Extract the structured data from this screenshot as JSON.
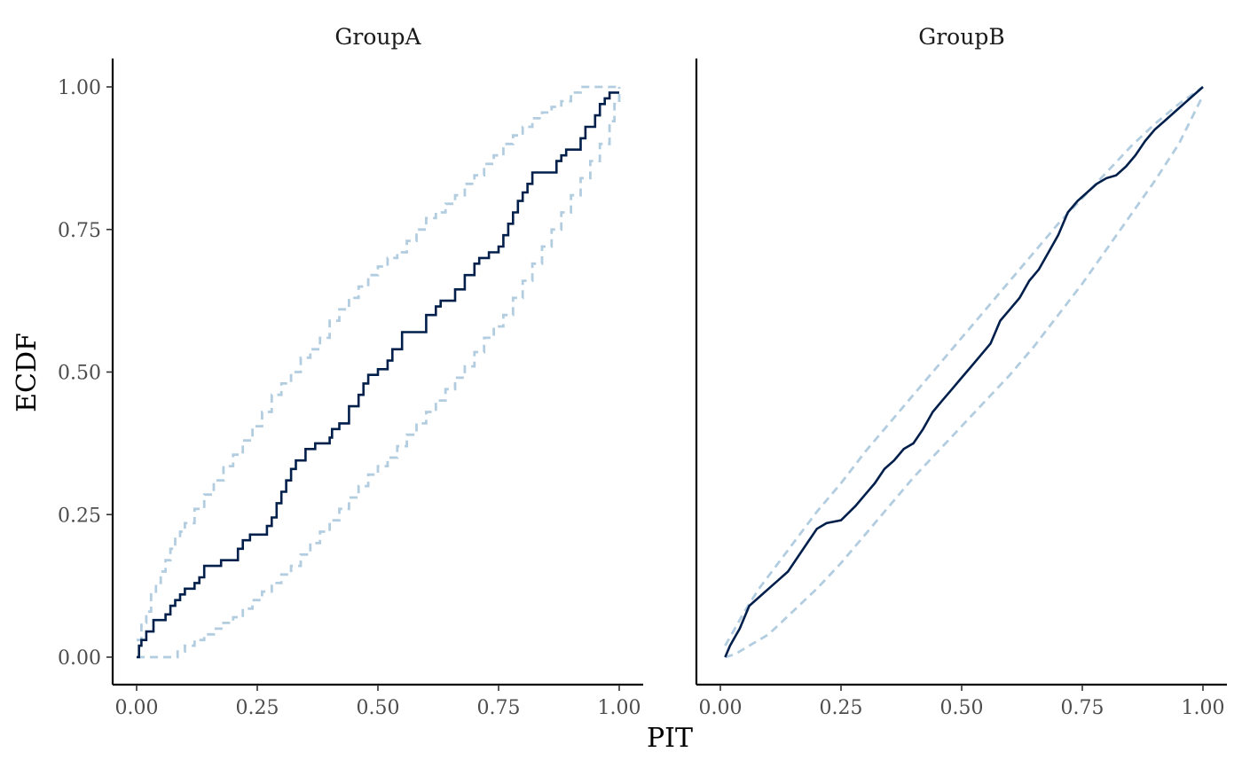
{
  "chart_data": {
    "type": "line",
    "xlabel": "PIT",
    "ylabel": "ECDF",
    "xlim": [
      0,
      1
    ],
    "ylim": [
      0,
      1
    ],
    "x_ticks": [
      "0.00",
      "0.25",
      "0.50",
      "0.75",
      "1.00"
    ],
    "y_ticks": [
      "0.00",
      "0.25",
      "0.50",
      "0.75",
      "1.00"
    ],
    "grid": false,
    "panels": [
      {
        "title": "GroupA",
        "series": [
          {
            "role": "ecdf",
            "color": "#011f4b",
            "step": true,
            "x": [
              0,
              0.005,
              0.01,
              0.02,
              0.035,
              0.06,
              0.07,
              0.08,
              0.09,
              0.1,
              0.12,
              0.13,
              0.14,
              0.175,
              0.21,
              0.22,
              0.235,
              0.27,
              0.28,
              0.29,
              0.3,
              0.31,
              0.32,
              0.33,
              0.35,
              0.37,
              0.4,
              0.405,
              0.42,
              0.44,
              0.46,
              0.47,
              0.48,
              0.5,
              0.52,
              0.53,
              0.55,
              0.6,
              0.62,
              0.63,
              0.66,
              0.68,
              0.7,
              0.71,
              0.73,
              0.75,
              0.76,
              0.77,
              0.78,
              0.79,
              0.8,
              0.81,
              0.82,
              0.835,
              0.87,
              0.88,
              0.89,
              0.92,
              0.93,
              0.95,
              0.96,
              0.97,
              0.98,
              0.99,
              1.0
            ],
            "y": [
              0,
              0.02,
              0.03,
              0.045,
              0.065,
              0.075,
              0.09,
              0.1,
              0.11,
              0.12,
              0.13,
              0.14,
              0.16,
              0.17,
              0.19,
              0.205,
              0.215,
              0.23,
              0.245,
              0.27,
              0.29,
              0.31,
              0.33,
              0.345,
              0.365,
              0.375,
              0.385,
              0.4,
              0.41,
              0.44,
              0.46,
              0.48,
              0.495,
              0.505,
              0.52,
              0.54,
              0.57,
              0.6,
              0.615,
              0.625,
              0.645,
              0.67,
              0.69,
              0.7,
              0.71,
              0.72,
              0.74,
              0.76,
              0.78,
              0.8,
              0.815,
              0.83,
              0.85,
              0.85,
              0.87,
              0.88,
              0.89,
              0.91,
              0.93,
              0.95,
              0.97,
              0.98,
              0.99,
              0.99,
              0.99
            ]
          },
          {
            "role": "upper-band",
            "color": "#b3cde0",
            "step": true,
            "x": [
              0,
              0.01,
              0.02,
              0.03,
              0.04,
              0.05,
              0.06,
              0.07,
              0.08,
              0.09,
              0.1,
              0.12,
              0.14,
              0.16,
              0.18,
              0.2,
              0.22,
              0.24,
              0.26,
              0.28,
              0.3,
              0.32,
              0.34,
              0.36,
              0.38,
              0.4,
              0.42,
              0.44,
              0.46,
              0.48,
              0.5,
              0.52,
              0.54,
              0.56,
              0.58,
              0.6,
              0.62,
              0.64,
              0.66,
              0.68,
              0.7,
              0.72,
              0.74,
              0.76,
              0.78,
              0.8,
              0.82,
              0.84,
              0.86,
              0.88,
              0.9,
              0.92,
              0.94,
              0.96,
              0.98,
              1.0
            ],
            "y": [
              0.03,
              0.06,
              0.08,
              0.11,
              0.13,
              0.15,
              0.17,
              0.19,
              0.21,
              0.22,
              0.235,
              0.26,
              0.285,
              0.31,
              0.335,
              0.355,
              0.38,
              0.405,
              0.43,
              0.46,
              0.48,
              0.5,
              0.525,
              0.54,
              0.56,
              0.59,
              0.61,
              0.63,
              0.65,
              0.67,
              0.685,
              0.7,
              0.71,
              0.73,
              0.75,
              0.77,
              0.78,
              0.795,
              0.81,
              0.83,
              0.845,
              0.865,
              0.88,
              0.9,
              0.915,
              0.93,
              0.945,
              0.955,
              0.965,
              0.975,
              0.99,
              1.0,
              1.0,
              1.0,
              1.0,
              1.0
            ]
          },
          {
            "role": "lower-band",
            "color": "#b3cde0",
            "step": true,
            "x": [
              0,
              0.06,
              0.085,
              0.1,
              0.12,
              0.14,
              0.16,
              0.18,
              0.2,
              0.22,
              0.24,
              0.26,
              0.28,
              0.3,
              0.32,
              0.34,
              0.36,
              0.38,
              0.4,
              0.42,
              0.44,
              0.46,
              0.48,
              0.5,
              0.52,
              0.54,
              0.56,
              0.58,
              0.6,
              0.62,
              0.64,
              0.66,
              0.68,
              0.7,
              0.72,
              0.74,
              0.76,
              0.78,
              0.8,
              0.82,
              0.84,
              0.86,
              0.88,
              0.9,
              0.92,
              0.94,
              0.96,
              0.98,
              0.99,
              1.0
            ],
            "y": [
              0,
              0,
              0.01,
              0.02,
              0.03,
              0.04,
              0.05,
              0.06,
              0.07,
              0.085,
              0.1,
              0.115,
              0.13,
              0.145,
              0.16,
              0.18,
              0.2,
              0.22,
              0.24,
              0.26,
              0.28,
              0.3,
              0.32,
              0.335,
              0.35,
              0.37,
              0.39,
              0.41,
              0.43,
              0.45,
              0.47,
              0.49,
              0.51,
              0.535,
              0.56,
              0.58,
              0.6,
              0.63,
              0.66,
              0.69,
              0.72,
              0.75,
              0.78,
              0.81,
              0.84,
              0.87,
              0.9,
              0.94,
              0.97,
              1.0
            ]
          }
        ]
      },
      {
        "title": "GroupB",
        "series": [
          {
            "role": "ecdf",
            "color": "#011f4b",
            "step": false,
            "x": [
              0.01,
              0.02,
              0.03,
              0.04,
              0.05,
              0.06,
              0.08,
              0.1,
              0.12,
              0.14,
              0.16,
              0.18,
              0.2,
              0.22,
              0.25,
              0.28,
              0.3,
              0.32,
              0.34,
              0.36,
              0.38,
              0.4,
              0.42,
              0.44,
              0.46,
              0.48,
              0.5,
              0.52,
              0.54,
              0.56,
              0.58,
              0.6,
              0.62,
              0.64,
              0.66,
              0.68,
              0.7,
              0.72,
              0.74,
              0.76,
              0.78,
              0.8,
              0.82,
              0.84,
              0.86,
              0.88,
              0.9,
              0.92,
              0.94,
              0.96,
              0.98,
              1.0
            ],
            "y": [
              0.0,
              0.02,
              0.035,
              0.05,
              0.07,
              0.09,
              0.105,
              0.12,
              0.135,
              0.15,
              0.175,
              0.2,
              0.225,
              0.235,
              0.24,
              0.265,
              0.285,
              0.305,
              0.33,
              0.345,
              0.365,
              0.375,
              0.4,
              0.43,
              0.45,
              0.47,
              0.49,
              0.51,
              0.53,
              0.55,
              0.59,
              0.61,
              0.63,
              0.66,
              0.68,
              0.71,
              0.74,
              0.78,
              0.8,
              0.815,
              0.83,
              0.84,
              0.845,
              0.86,
              0.88,
              0.905,
              0.925,
              0.94,
              0.955,
              0.97,
              0.985,
              1.0
            ]
          },
          {
            "role": "upper-band",
            "color": "#b3cde0",
            "step": false,
            "x": [
              0.01,
              0.03,
              0.05,
              0.08,
              0.12,
              0.16,
              0.2,
              0.25,
              0.3,
              0.35,
              0.4,
              0.45,
              0.5,
              0.55,
              0.6,
              0.65,
              0.7,
              0.75,
              0.8,
              0.85,
              0.9,
              0.95,
              1.0
            ],
            "y": [
              0.02,
              0.05,
              0.08,
              0.12,
              0.165,
              0.21,
              0.255,
              0.305,
              0.36,
              0.41,
              0.46,
              0.51,
              0.56,
              0.61,
              0.66,
              0.71,
              0.76,
              0.805,
              0.85,
              0.895,
              0.935,
              0.97,
              1.0
            ]
          },
          {
            "role": "lower-band",
            "color": "#b3cde0",
            "step": false,
            "x": [
              0.01,
              0.03,
              0.06,
              0.1,
              0.15,
              0.2,
              0.25,
              0.3,
              0.35,
              0.4,
              0.45,
              0.5,
              0.55,
              0.6,
              0.65,
              0.7,
              0.75,
              0.8,
              0.85,
              0.9,
              0.95,
              1.0
            ],
            "y": [
              0.0,
              0.005,
              0.02,
              0.04,
              0.08,
              0.12,
              0.165,
              0.215,
              0.265,
              0.315,
              0.36,
              0.405,
              0.45,
              0.495,
              0.545,
              0.6,
              0.655,
              0.715,
              0.775,
              0.835,
              0.9,
              0.985
            ]
          }
        ]
      }
    ]
  }
}
